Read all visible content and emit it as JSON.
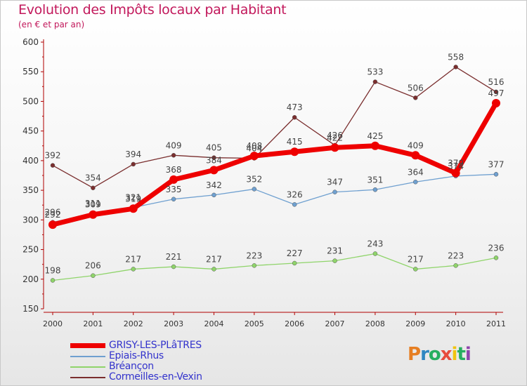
{
  "title": "Evolution des Impôts locaux par Habitant",
  "subtitle": "(en € et par an)",
  "logo": {
    "text": "Proxiti",
    "letter_colors": [
      "#e67e22",
      "#2e86c1",
      "#27ae60",
      "#e74c3c",
      "#f1c40f",
      "#27ae60",
      "#8e44ad"
    ]
  },
  "chart_data": {
    "type": "line",
    "title": "Evolution des Impôts locaux par Habitant",
    "subtitle": "(en € et par an)",
    "xlabel": "",
    "ylabel": "",
    "x": [
      "2000",
      "2001",
      "2002",
      "2003",
      "2004",
      "2005",
      "2006",
      "2007",
      "2008",
      "2009",
      "2010",
      "2011"
    ],
    "ylim": [
      150,
      600
    ],
    "yticks": [
      150,
      200,
      250,
      300,
      350,
      400,
      450,
      500,
      550,
      600
    ],
    "grid": false,
    "legend_position": "bottom-left",
    "series": [
      {
        "name": "GRISY-LES-PLâTRES",
        "color": "#ee0000",
        "emphasis": true,
        "values": [
          292,
          309,
          319,
          368,
          384,
          408,
          415,
          422,
          425,
          409,
          379,
          497
        ]
      },
      {
        "name": "Epiais-Rhus",
        "color": "#6fa0d0",
        "emphasis": false,
        "values": [
          296,
          311,
          321,
          335,
          342,
          352,
          326,
          347,
          351,
          364,
          374,
          377
        ]
      },
      {
        "name": "Bréançon",
        "color": "#8fd46a",
        "emphasis": false,
        "values": [
          198,
          206,
          217,
          221,
          217,
          223,
          227,
          231,
          243,
          217,
          223,
          236
        ]
      },
      {
        "name": "Cormeilles-en-Vexin",
        "color": "#7a2e2e",
        "emphasis": false,
        "values": [
          392,
          354,
          394,
          409,
          405,
          404,
          473,
          426,
          533,
          506,
          558,
          516
        ]
      }
    ]
  }
}
